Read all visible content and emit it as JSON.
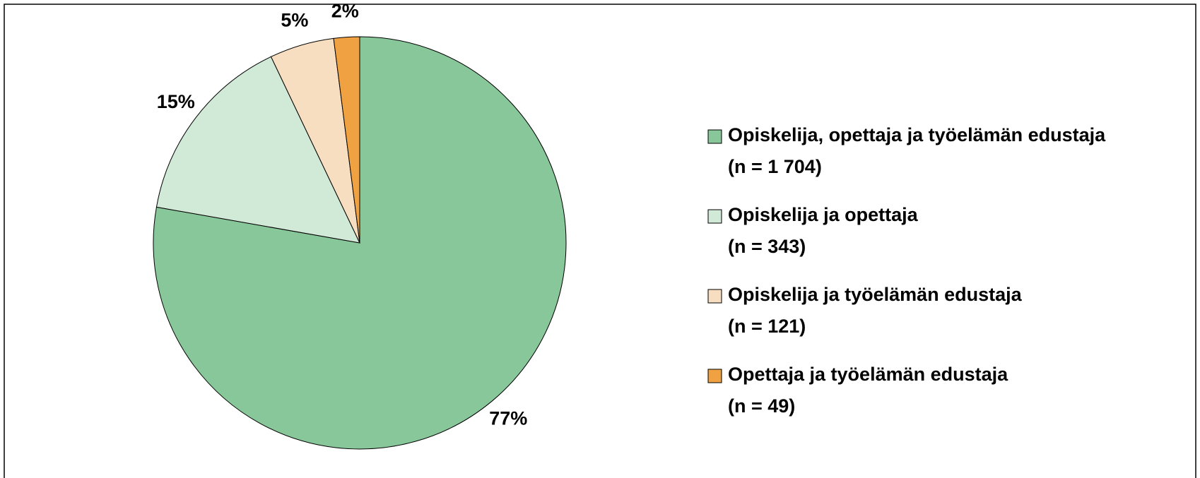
{
  "chart_data": {
    "type": "pie",
    "categories": [
      "Opiskelija, opettaja ja työelämän edustaja",
      "Opiskelija ja opettaja",
      "Opiskelija ja työelämän edustaja",
      "Opettaja ja työelämän edustaja"
    ],
    "legend_notes": [
      "(n = 1 704)",
      "(n = 343)",
      "(n = 121)",
      "(n = 49)"
    ],
    "values": [
      77,
      15,
      5,
      2
    ],
    "value_labels": [
      "77%",
      "15%",
      "5%",
      "2%"
    ],
    "colors": [
      "#88c799",
      "#d1e9d7",
      "#f8dec0",
      "#f0a242"
    ],
    "legend": "right"
  }
}
